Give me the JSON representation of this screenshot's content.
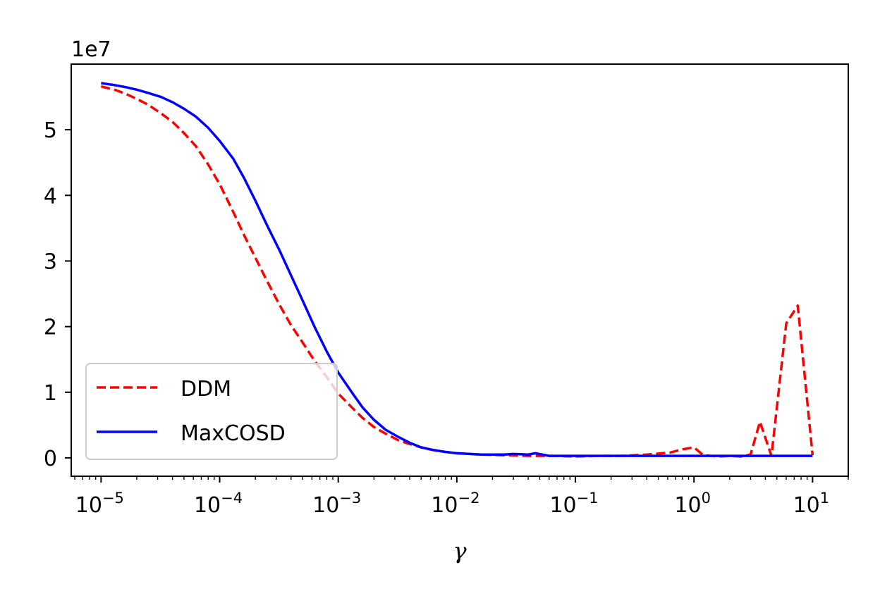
{
  "chart_data": {
    "type": "line",
    "xscale": "log",
    "xlabel": "γ",
    "ylabel": "",
    "y_offset_label": "1e7",
    "xlim": [
      5.6e-06,
      20
    ],
    "ylim": [
      -0.28,
      6.0
    ],
    "x_ticks": [
      {
        "value": 1e-05,
        "base": "10",
        "exp": "−5"
      },
      {
        "value": 0.0001,
        "base": "10",
        "exp": "−4"
      },
      {
        "value": 0.001,
        "base": "10",
        "exp": "−3"
      },
      {
        "value": 0.01,
        "base": "10",
        "exp": "−2"
      },
      {
        "value": 0.1,
        "base": "10",
        "exp": "−1"
      },
      {
        "value": 1,
        "base": "10",
        "exp": "0"
      },
      {
        "value": 10,
        "base": "10",
        "exp": "1"
      }
    ],
    "y_ticks": [
      {
        "value": 0,
        "label": "0"
      },
      {
        "value": 1,
        "label": "1"
      },
      {
        "value": 2,
        "label": "2"
      },
      {
        "value": 3,
        "label": "3"
      },
      {
        "value": 4,
        "label": "4"
      },
      {
        "value": 5,
        "label": "5"
      }
    ],
    "legend": {
      "position": "lower-left"
    },
    "series": [
      {
        "name": "DDM",
        "color": "#ff0000",
        "dashed": true,
        "points": [
          [
            1e-05,
            5.66
          ],
          [
            1.3e-05,
            5.61
          ],
          [
            1.6e-05,
            5.55
          ],
          [
            2e-05,
            5.47
          ],
          [
            2.5e-05,
            5.38
          ],
          [
            3.2e-05,
            5.25
          ],
          [
            4e-05,
            5.12
          ],
          [
            5e-05,
            4.95
          ],
          [
            6.3e-05,
            4.75
          ],
          [
            8e-05,
            4.47
          ],
          [
            0.0001,
            4.17
          ],
          [
            0.00013,
            3.75
          ],
          [
            0.00016,
            3.4
          ],
          [
            0.0002,
            3.05
          ],
          [
            0.00025,
            2.7
          ],
          [
            0.00032,
            2.33
          ],
          [
            0.0004,
            2.02
          ],
          [
            0.0005,
            1.76
          ],
          [
            0.00063,
            1.48
          ],
          [
            0.0008,
            1.23
          ],
          [
            0.001,
            0.98
          ],
          [
            0.0013,
            0.77
          ],
          [
            0.0016,
            0.61
          ],
          [
            0.002,
            0.47
          ],
          [
            0.0025,
            0.37
          ],
          [
            0.0032,
            0.27
          ],
          [
            0.004,
            0.21
          ],
          [
            0.005,
            0.16
          ],
          [
            0.0063,
            0.12
          ],
          [
            0.008,
            0.09
          ],
          [
            0.01,
            0.07
          ],
          [
            0.016,
            0.05
          ],
          [
            0.025,
            0.04
          ],
          [
            0.04,
            0.03
          ],
          [
            0.063,
            0.03
          ],
          [
            0.1,
            0.02
          ],
          [
            0.16,
            0.03
          ],
          [
            0.25,
            0.03
          ],
          [
            0.4,
            0.05
          ],
          [
            0.63,
            0.08
          ],
          [
            0.8,
            0.13
          ],
          [
            1.0,
            0.16
          ],
          [
            1.2,
            0.04
          ],
          [
            1.6,
            0.02
          ],
          [
            2.0,
            0.03
          ],
          [
            2.5,
            0.02
          ],
          [
            3.0,
            0.05
          ],
          [
            3.6,
            0.55
          ],
          [
            4.5,
            0.03
          ],
          [
            6.0,
            2.05
          ],
          [
            7.5,
            2.32
          ],
          [
            10,
            0.04
          ]
        ]
      },
      {
        "name": "MaxCOSD",
        "color": "#0000ff",
        "dashed": false,
        "points": [
          [
            1e-05,
            5.71
          ],
          [
            1.3e-05,
            5.68
          ],
          [
            1.6e-05,
            5.65
          ],
          [
            2e-05,
            5.61
          ],
          [
            2.5e-05,
            5.56
          ],
          [
            3.2e-05,
            5.5
          ],
          [
            4e-05,
            5.42
          ],
          [
            5e-05,
            5.32
          ],
          [
            6.3e-05,
            5.2
          ],
          [
            8e-05,
            5.03
          ],
          [
            0.0001,
            4.83
          ],
          [
            0.00013,
            4.56
          ],
          [
            0.00016,
            4.27
          ],
          [
            0.0002,
            3.92
          ],
          [
            0.00025,
            3.55
          ],
          [
            0.00032,
            3.16
          ],
          [
            0.0004,
            2.78
          ],
          [
            0.0005,
            2.4
          ],
          [
            0.00063,
            2.0
          ],
          [
            0.0008,
            1.62
          ],
          [
            0.001,
            1.3
          ],
          [
            0.0013,
            1.0
          ],
          [
            0.0016,
            0.77
          ],
          [
            0.002,
            0.58
          ],
          [
            0.0025,
            0.43
          ],
          [
            0.0032,
            0.32
          ],
          [
            0.004,
            0.23
          ],
          [
            0.005,
            0.16
          ],
          [
            0.0063,
            0.12
          ],
          [
            0.008,
            0.09
          ],
          [
            0.01,
            0.07
          ],
          [
            0.016,
            0.05
          ],
          [
            0.025,
            0.05
          ],
          [
            0.03,
            0.06
          ],
          [
            0.04,
            0.05
          ],
          [
            0.046,
            0.07
          ],
          [
            0.06,
            0.03
          ],
          [
            0.1,
            0.03
          ],
          [
            1.0,
            0.03
          ],
          [
            10,
            0.03
          ]
        ]
      }
    ]
  }
}
